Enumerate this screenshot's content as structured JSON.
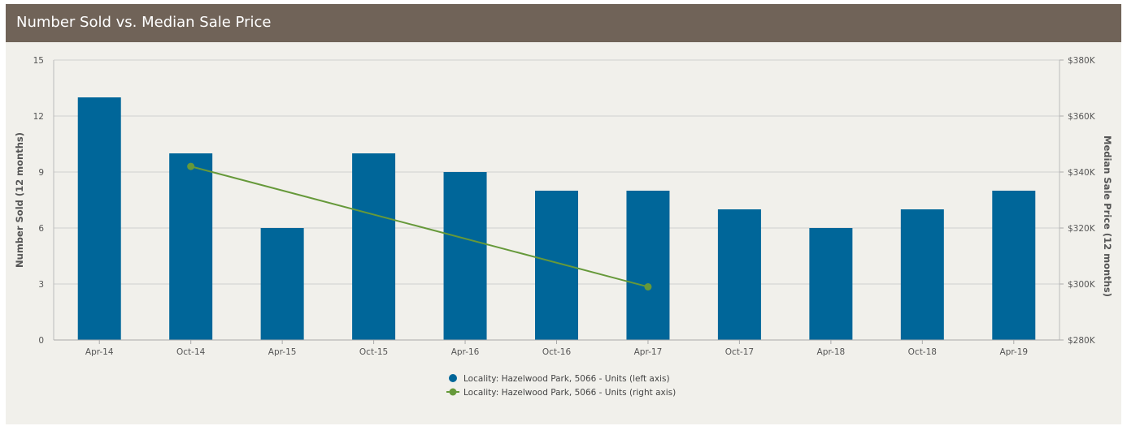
{
  "panel": {
    "title": "Number Sold vs. Median Sale Price"
  },
  "chart_data": {
    "type": "bar",
    "categories": [
      "Apr-14",
      "Oct-14",
      "Apr-15",
      "Oct-15",
      "Apr-16",
      "Oct-16",
      "Apr-17",
      "Oct-17",
      "Apr-18",
      "Oct-18",
      "Apr-19"
    ],
    "series": [
      {
        "name": "Locality: Hazelwood Park, 5066 - Units (left axis)",
        "type": "bar",
        "axis": "left",
        "color": "#006699",
        "values": [
          13,
          10,
          6,
          10,
          9,
          8,
          8,
          7,
          6,
          7,
          8
        ]
      },
      {
        "name": "Locality: Hazelwood Park, 5066 - Units (right axis)",
        "type": "line",
        "axis": "right",
        "color": "#66993a",
        "values": [
          null,
          342000,
          null,
          null,
          null,
          null,
          299000,
          null,
          null,
          null,
          null
        ]
      }
    ],
    "left_axis": {
      "label": "Number Sold (12 months)",
      "min": 0,
      "max": 15,
      "ticks": [
        0,
        3,
        6,
        9,
        12,
        15
      ],
      "tick_labels": [
        "0",
        "3",
        "6",
        "9",
        "12",
        "15"
      ]
    },
    "right_axis": {
      "label": "Median Sale Price (12 months)",
      "min": 280000,
      "max": 380000,
      "ticks": [
        280000,
        300000,
        320000,
        340000,
        360000,
        380000
      ],
      "tick_labels": [
        "$280K",
        "$300K",
        "$320K",
        "$340K",
        "$360K",
        "$380K"
      ]
    },
    "grid": true,
    "legend_position": "bottom-center"
  }
}
